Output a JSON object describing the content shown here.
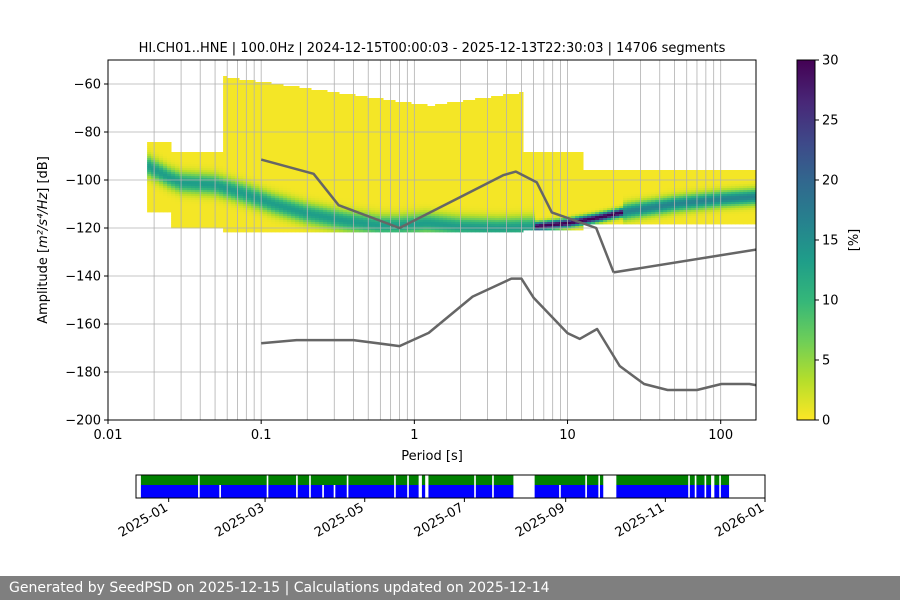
{
  "chart_data": {
    "type": "heatmap",
    "title": "HI.CH01..HNE | 100.0Hz | 2024-12-15T00:00:03 - 2025-12-13T22:30:03 | 14706 segments",
    "xlabel": "Period [s]",
    "ylabel_prefix": "Amplitude [",
    "ylabel_unit": "m²/s⁴/Hz",
    "ylabel_suffix": "] [dB]",
    "x_scale": "log",
    "xlim": [
      0.01,
      170
    ],
    "ylim": [
      -200,
      -50
    ],
    "x_ticks": [
      {
        "value": 0.01,
        "label": "0.01"
      },
      {
        "value": 0.1,
        "label": "0.1"
      },
      {
        "value": 1,
        "label": "1"
      },
      {
        "value": 10,
        "label": "10"
      },
      {
        "value": 100,
        "label": "100"
      }
    ],
    "y_ticks": [
      -60,
      -80,
      -100,
      -120,
      -140,
      -160,
      -180,
      -200
    ],
    "y_tick_labels": [
      "−60",
      "−80",
      "−100",
      "−120",
      "−140",
      "−160",
      "−180",
      "−200"
    ],
    "grid": "on",
    "colorbar": {
      "label": "[%]",
      "range": [
        0,
        30
      ],
      "ticks": [
        0,
        5,
        10,
        15,
        20,
        25,
        30
      ],
      "colormap": [
        "#fde725",
        "#b5de2b",
        "#6ece58",
        "#35b779",
        "#1f9e89",
        "#26828e",
        "#31688e",
        "#3e4989",
        "#482878",
        "#440154"
      ]
    },
    "mode_curve": {
      "period": [
        0.018,
        0.025,
        0.03,
        0.05,
        0.08,
        0.12,
        0.2,
        0.35,
        0.6,
        0.8,
        1.2,
        2,
        3.5,
        6,
        10,
        15,
        25,
        50,
        100,
        170
      ],
      "db": [
        -94,
        -99,
        -101,
        -102,
        -106,
        -110,
        -114,
        -117,
        -119,
        -119,
        -118,
        -119.5,
        -120,
        -119.5,
        -118,
        -116,
        -113,
        -110,
        -108,
        -107
      ]
    },
    "nhnm": {
      "period": [
        0.1,
        0.22,
        0.32,
        0.8,
        3.8,
        4.6,
        6.3,
        7.9,
        15.4,
        20
      ],
      "db": [
        -91.5,
        -97.4,
        -110.5,
        -120,
        -98,
        -96.5,
        -101,
        -113.5,
        -120,
        -138.5
      ]
    },
    "nhnm_tail": {
      "period": [
        20,
        170
      ],
      "db": [
        -138.5,
        -129
      ]
    },
    "nlnm": {
      "period": [
        0.1,
        0.17,
        0.4,
        0.8,
        1.24,
        2.4,
        4.3,
        5,
        6,
        10,
        12,
        15.6,
        21.9,
        31.6,
        45,
        70,
        101,
        154,
        170
      ],
      "db": [
        -168,
        -166.7,
        -166.7,
        -169.2,
        -163.7,
        -148.6,
        -141.1,
        -141.1,
        -149,
        -163.8,
        -166.2,
        -162.1,
        -177.5,
        -185,
        -187.5,
        -187.5,
        -185,
        -185,
        -185.5
      ]
    },
    "coverage": {
      "x_labels": [
        "2025-01",
        "2025-03",
        "2025-05",
        "2025-07",
        "2025-09",
        "2025-11",
        "2026-01"
      ],
      "x_dates": [
        "2025-01-01",
        "2025-03-01",
        "2025-05-01",
        "2025-07-01",
        "2025-09-01",
        "2025-11-01",
        "2026-01-01"
      ],
      "range": [
        "2024-12-12",
        "2026-01-01"
      ],
      "data_color": "#008000",
      "psd_color": "#0000ff",
      "segments": [
        [
          "2024-12-15",
          "2025-01-19"
        ],
        [
          "2025-01-20",
          "2025-03-02"
        ],
        [
          "2025-03-03",
          "2025-03-20"
        ],
        [
          "2025-03-21",
          "2025-03-28"
        ],
        [
          "2025-03-29",
          "2025-04-20"
        ],
        [
          "2025-04-21",
          "2025-05-19"
        ],
        [
          "2025-05-20",
          "2025-05-27"
        ],
        [
          "2025-05-28",
          "2025-06-03"
        ],
        [
          "2025-06-05",
          "2025-06-07"
        ],
        [
          "2025-06-09",
          "2025-07-07"
        ],
        [
          "2025-07-08",
          "2025-07-18"
        ],
        [
          "2025-07-19",
          "2025-07-31"
        ],
        [
          "2025-08-13",
          "2025-09-13"
        ],
        [
          "2025-09-14",
          "2025-09-21"
        ],
        [
          "2025-09-22",
          "2025-09-24"
        ],
        [
          "2025-10-02",
          "2025-11-15"
        ],
        [
          "2025-11-16",
          "2025-11-19"
        ],
        [
          "2025-11-20",
          "2025-11-25"
        ],
        [
          "2025-11-26",
          "2025-11-29"
        ],
        [
          "2025-12-01",
          "2025-12-04"
        ],
        [
          "2025-12-05",
          "2025-12-10"
        ]
      ],
      "psd_gaps": [
        [
          "2025-02-01",
          "2025-02-02"
        ],
        [
          "2025-04-05",
          "2025-04-06"
        ],
        [
          "2025-04-12",
          "2025-04-13"
        ],
        [
          "2025-08-28",
          "2025-08-29"
        ]
      ]
    }
  },
  "footer": {
    "text": "Generated by SeedPSD on 2025-12-15 | Calculations updated on 2025-12-14"
  }
}
